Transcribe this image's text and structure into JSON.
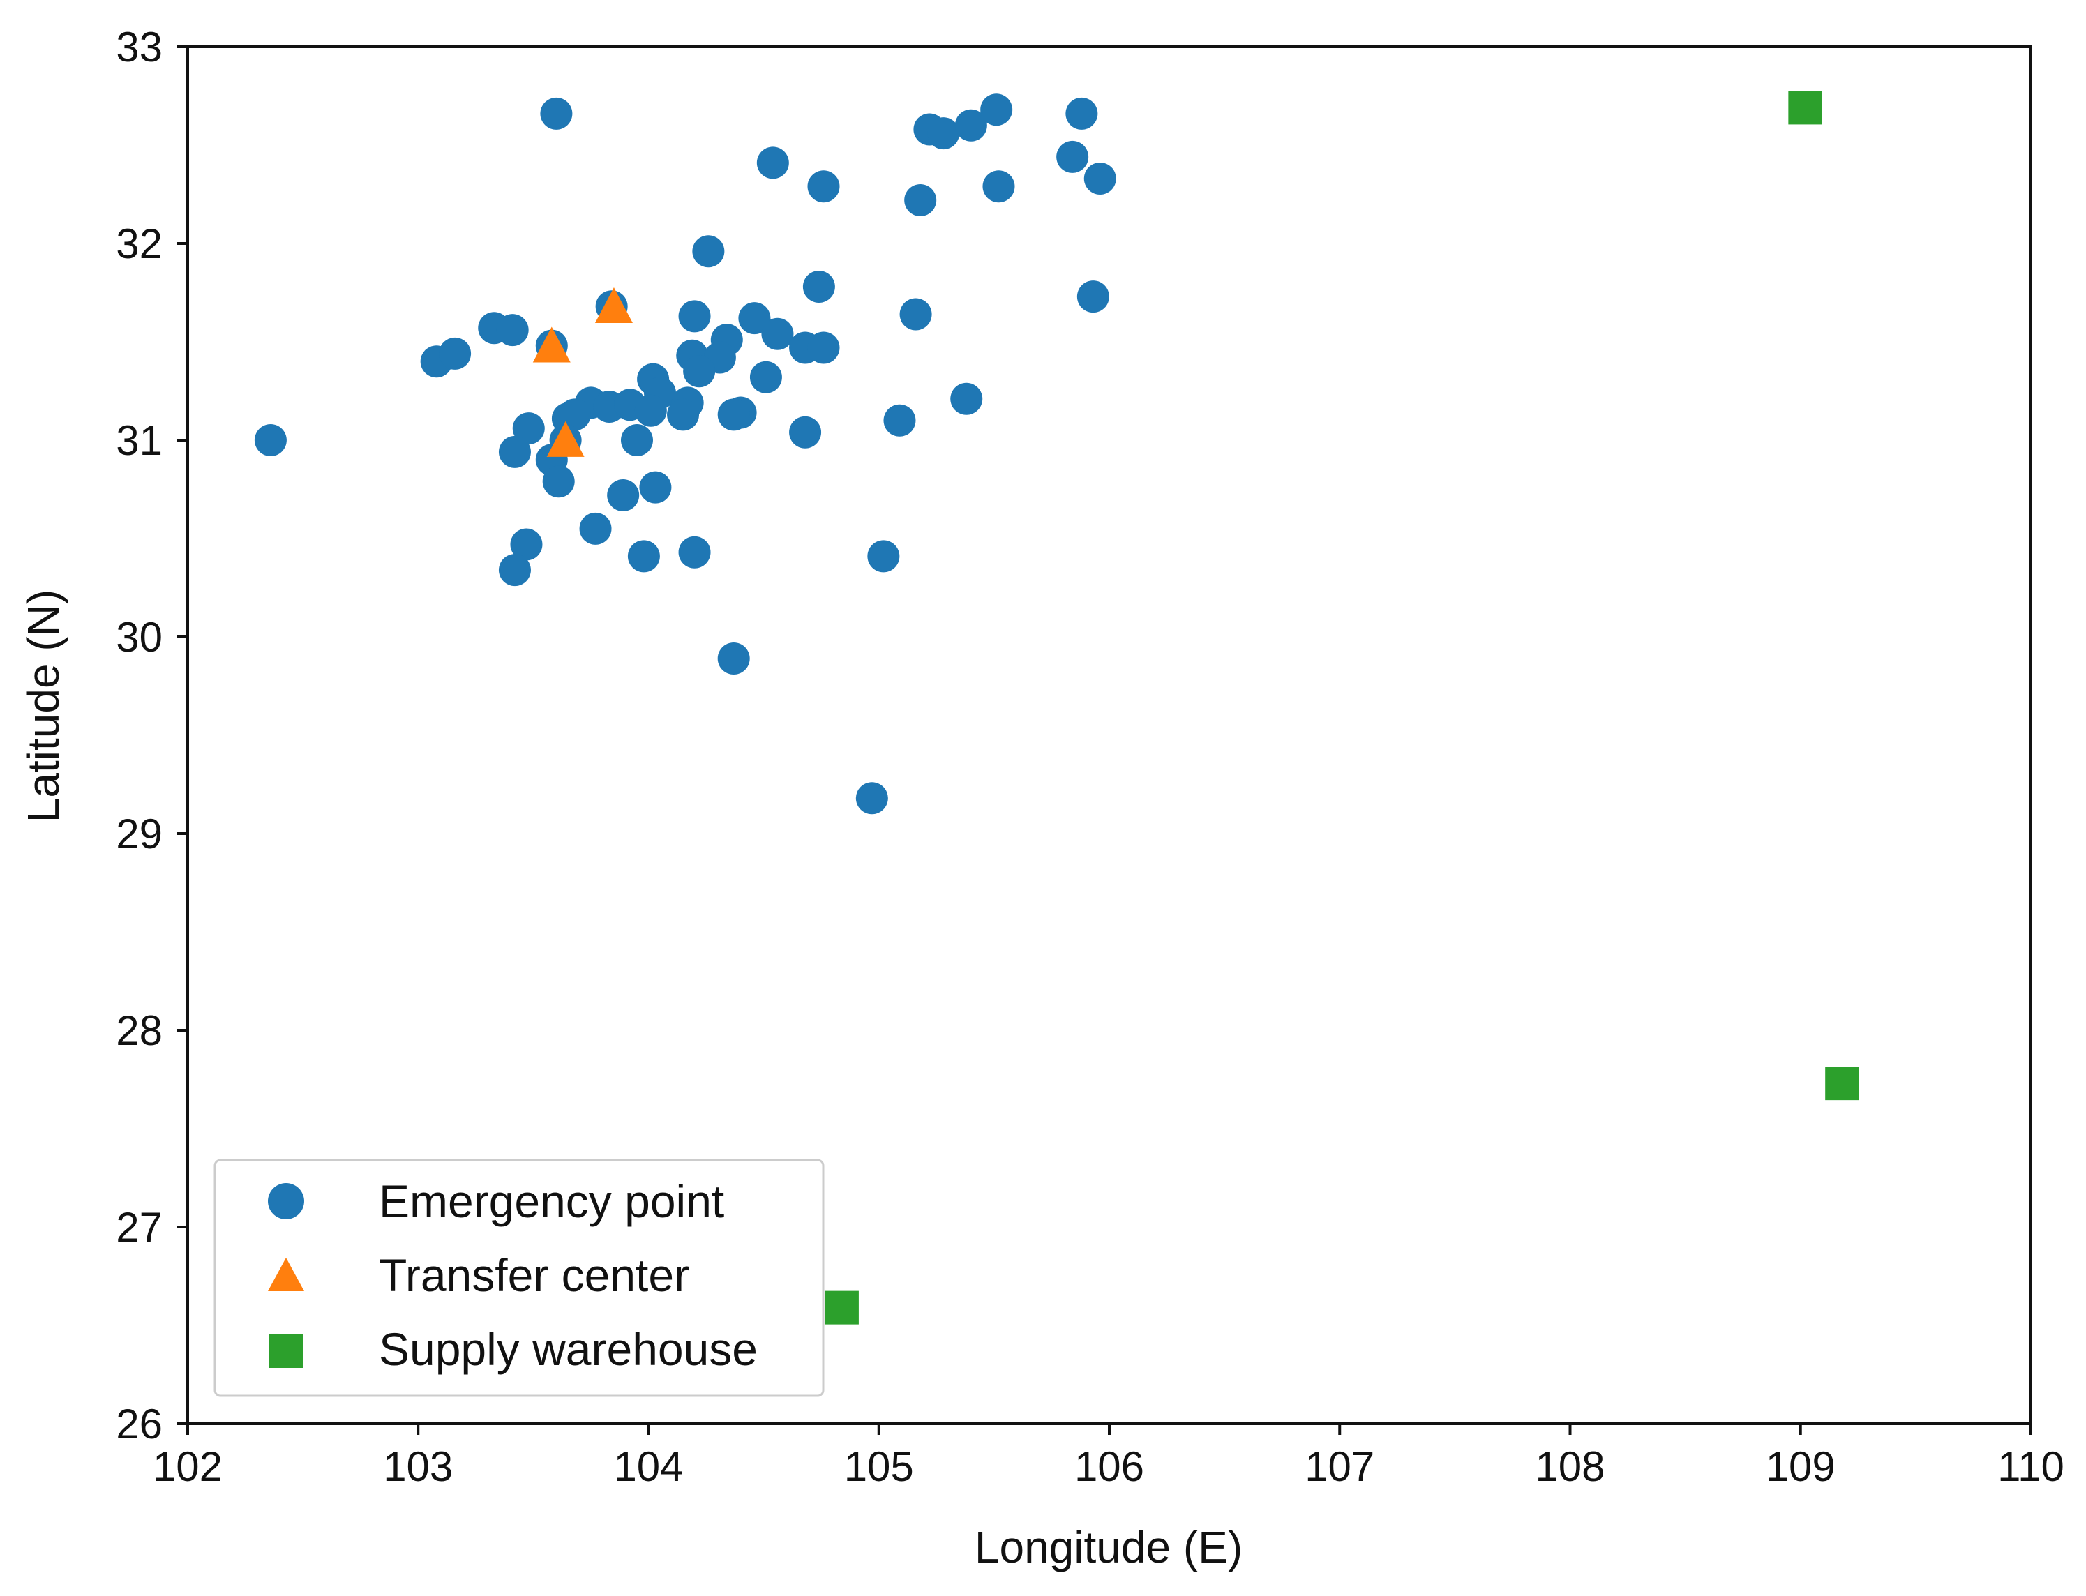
{
  "chart_data": {
    "type": "scatter",
    "title": "",
    "xlabel": "Longitude (E)",
    "ylabel": "Latitude (N)",
    "xlim": [
      102,
      110
    ],
    "ylim": [
      26,
      33
    ],
    "xticks": [
      102,
      103,
      104,
      105,
      106,
      107,
      108,
      109,
      110
    ],
    "yticks": [
      26,
      27,
      28,
      29,
      30,
      31,
      32,
      33
    ],
    "grid": false,
    "legend_position": "lower-left",
    "series": [
      {
        "name": "Emergency point",
        "marker": "circle",
        "color": "#1f77b4",
        "points": [
          [
            103.6,
            32.66
          ],
          [
            105.22,
            32.58
          ],
          [
            105.28,
            32.56
          ],
          [
            105.4,
            32.6
          ],
          [
            105.51,
            32.68
          ],
          [
            105.88,
            32.66
          ],
          [
            105.84,
            32.44
          ],
          [
            105.96,
            32.33
          ],
          [
            105.52,
            32.29
          ],
          [
            105.18,
            32.22
          ],
          [
            104.54,
            32.41
          ],
          [
            104.76,
            32.29
          ],
          [
            104.26,
            31.96
          ],
          [
            104.74,
            31.78
          ],
          [
            105.93,
            31.73
          ],
          [
            105.16,
            31.64
          ],
          [
            103.84,
            31.68
          ],
          [
            103.33,
            31.57
          ],
          [
            103.41,
            31.56
          ],
          [
            103.58,
            31.48
          ],
          [
            103.08,
            31.4
          ],
          [
            103.16,
            31.44
          ],
          [
            104.2,
            31.63
          ],
          [
            104.46,
            31.62
          ],
          [
            104.56,
            31.54
          ],
          [
            104.34,
            31.51
          ],
          [
            104.68,
            31.47
          ],
          [
            104.76,
            31.47
          ],
          [
            104.19,
            31.43
          ],
          [
            104.31,
            31.42
          ],
          [
            104.22,
            31.35
          ],
          [
            104.51,
            31.32
          ],
          [
            104.02,
            31.31
          ],
          [
            104.05,
            31.24
          ],
          [
            104.17,
            31.19
          ],
          [
            104.15,
            31.13
          ],
          [
            103.75,
            31.19
          ],
          [
            103.83,
            31.17
          ],
          [
            103.92,
            31.18
          ],
          [
            104.01,
            31.15
          ],
          [
            103.65,
            31.11
          ],
          [
            103.68,
            31.13
          ],
          [
            103.48,
            31.06
          ],
          [
            103.42,
            30.94
          ],
          [
            103.58,
            30.9
          ],
          [
            103.64,
            31.0
          ],
          [
            103.61,
            30.79
          ],
          [
            103.95,
            31.0
          ],
          [
            104.4,
            31.14
          ],
          [
            104.37,
            31.13
          ],
          [
            104.68,
            31.04
          ],
          [
            105.09,
            31.1
          ],
          [
            105.38,
            31.21
          ],
          [
            102.36,
            31.0
          ],
          [
            103.89,
            30.72
          ],
          [
            104.03,
            30.76
          ],
          [
            103.77,
            30.55
          ],
          [
            103.47,
            30.47
          ],
          [
            103.42,
            30.34
          ],
          [
            103.98,
            30.41
          ],
          [
            104.2,
            30.43
          ],
          [
            105.02,
            30.41
          ],
          [
            104.37,
            29.89
          ],
          [
            104.97,
            29.18
          ]
        ]
      },
      {
        "name": "Transfer center",
        "marker": "triangle",
        "color": "#ff7f0e",
        "points": [
          [
            103.58,
            31.47
          ],
          [
            103.85,
            31.67
          ],
          [
            103.64,
            30.99
          ]
        ]
      },
      {
        "name": "Supply warehouse",
        "marker": "square",
        "color": "#2ca02c",
        "points": [
          [
            109.02,
            32.69
          ],
          [
            109.18,
            27.73
          ],
          [
            104.84,
            26.59
          ]
        ]
      }
    ]
  }
}
